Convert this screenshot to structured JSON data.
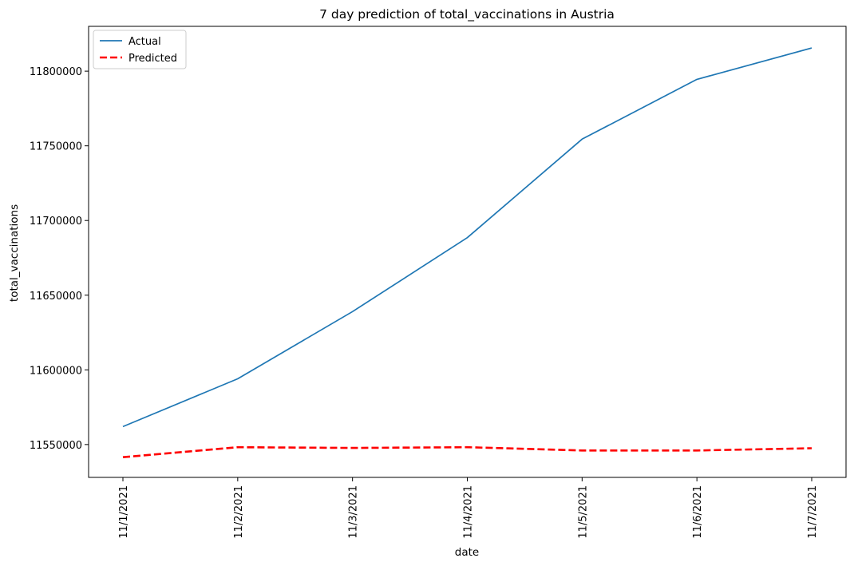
{
  "chart_data": {
    "type": "line",
    "title": "7 day prediction of total_vaccinations in Austria",
    "xlabel": "date",
    "ylabel": "total_vaccinations",
    "categories": [
      "11/1/2021",
      "11/2/2021",
      "11/3/2021",
      "11/4/2021",
      "11/5/2021",
      "11/6/2021",
      "11/7/2021"
    ],
    "yticks": [
      11550000,
      11600000,
      11650000,
      11700000,
      11750000,
      11800000
    ],
    "ylim": [
      11528000,
      11830000
    ],
    "grid": false,
    "legend_position": "top-left",
    "series": [
      {
        "name": "Actual",
        "color": "#1f77b4",
        "line_style": "solid",
        "values": [
          11562000,
          11594000,
          11639000,
          11688500,
          11754500,
          11794500,
          11815500
        ]
      },
      {
        "name": "Predicted",
        "color": "#ff0000",
        "line_style": "dashed",
        "values": [
          11541500,
          11548200,
          11547700,
          11548200,
          11546000,
          11546000,
          11547500
        ]
      }
    ]
  }
}
